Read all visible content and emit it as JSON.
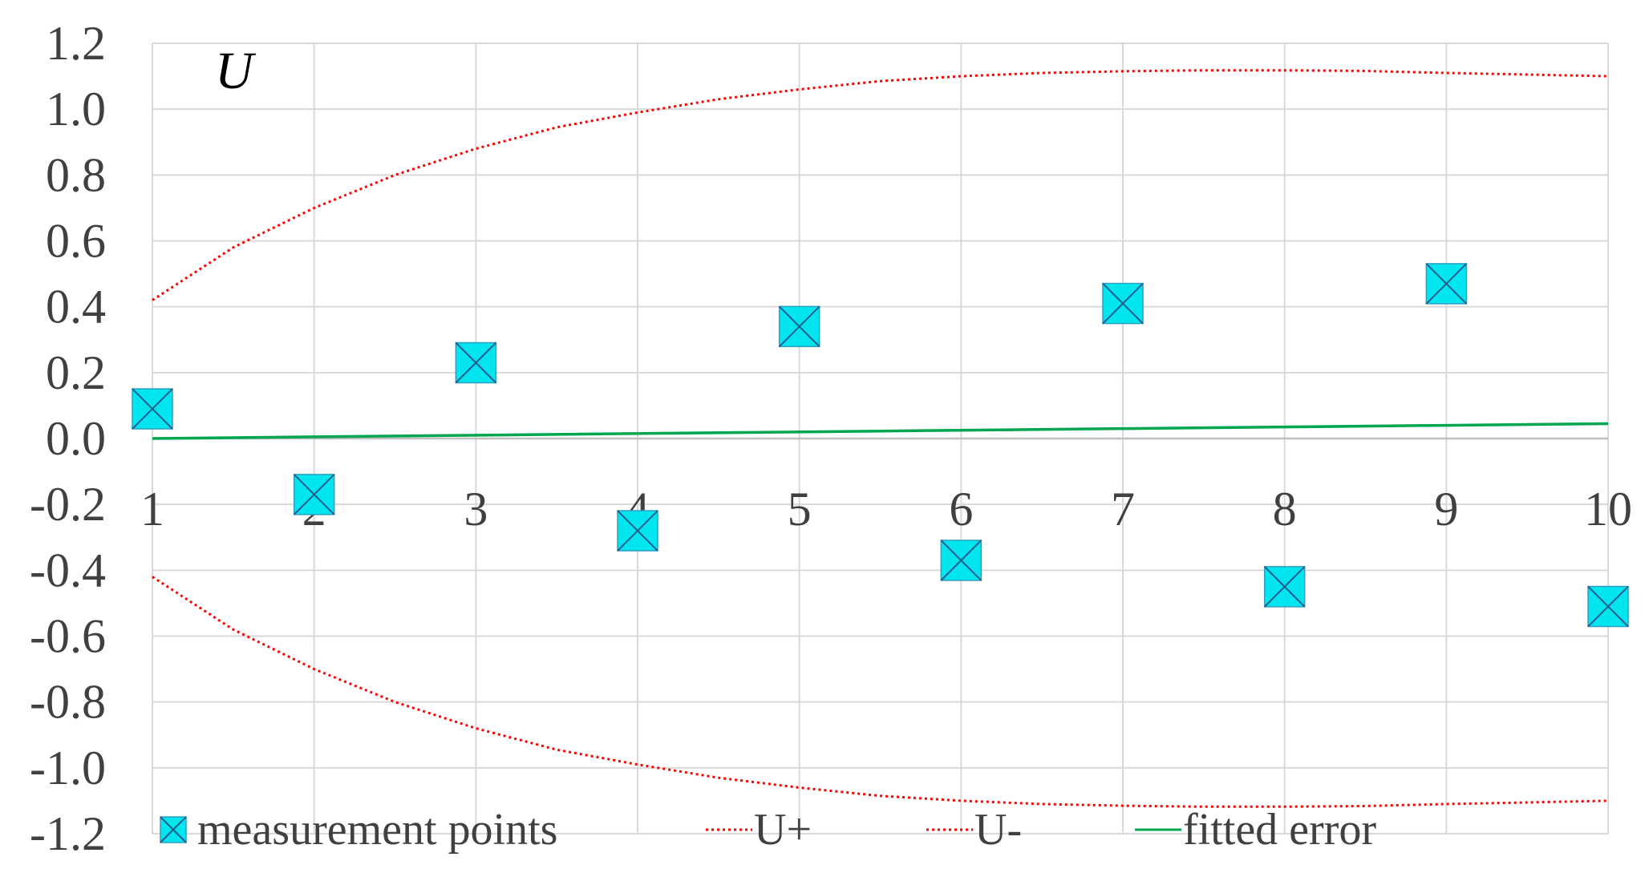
{
  "chart_data": {
    "type": "scatter",
    "title": "U",
    "xlabel": "",
    "ylabel": "",
    "x_ticks": [
      "1",
      "2",
      "3",
      "4",
      "5",
      "6",
      "7",
      "8",
      "9",
      "10"
    ],
    "y_ticks": [
      "1.2",
      "1.0",
      "0.8",
      "0.6",
      "0.4",
      "0.2",
      "0.0",
      "-0.2",
      "-0.4",
      "-0.6",
      "-0.8",
      "-1.0",
      "-1.2"
    ],
    "xlim": [
      1,
      10
    ],
    "ylim": [
      -1.2,
      1.2
    ],
    "grid": true,
    "legend_position": "bottom",
    "series": [
      {
        "name": "measurement points",
        "kind": "scatter",
        "marker": "square-x",
        "color": "#00E5EE",
        "x": [
          1,
          2,
          3,
          4,
          5,
          6,
          7,
          8,
          9,
          10
        ],
        "y": [
          0.09,
          -0.17,
          0.23,
          -0.28,
          0.34,
          -0.37,
          0.41,
          -0.45,
          0.47,
          -0.51
        ]
      },
      {
        "name": "U+",
        "kind": "line",
        "style": "dotted",
        "color": "#FF0000",
        "x": [
          1,
          1.5,
          2,
          2.5,
          3,
          3.5,
          4,
          4.5,
          5,
          5.5,
          6,
          6.5,
          7,
          7.5,
          8,
          8.5,
          9,
          9.5,
          10
        ],
        "y": [
          0.42,
          0.58,
          0.7,
          0.8,
          0.88,
          0.945,
          0.99,
          1.03,
          1.06,
          1.085,
          1.1,
          1.11,
          1.115,
          1.118,
          1.118,
          1.116,
          1.11,
          1.105,
          1.1
        ]
      },
      {
        "name": "U-",
        "kind": "line",
        "style": "dotted",
        "color": "#FF0000",
        "x": [
          1,
          1.5,
          2,
          2.5,
          3,
          3.5,
          4,
          4.5,
          5,
          5.5,
          6,
          6.5,
          7,
          7.5,
          8,
          8.5,
          9,
          9.5,
          10
        ],
        "y": [
          -0.42,
          -0.58,
          -0.7,
          -0.8,
          -0.88,
          -0.945,
          -0.99,
          -1.03,
          -1.06,
          -1.085,
          -1.1,
          -1.11,
          -1.115,
          -1.118,
          -1.118,
          -1.116,
          -1.11,
          -1.105,
          -1.1
        ]
      },
      {
        "name": "fitted error",
        "kind": "line",
        "style": "solid",
        "color": "#00A550",
        "x": [
          1,
          10
        ],
        "y": [
          0.0,
          0.045
        ]
      }
    ]
  }
}
